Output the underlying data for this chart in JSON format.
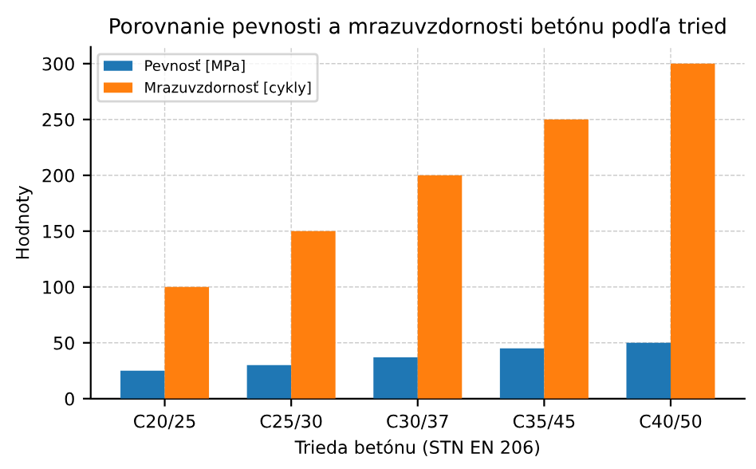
{
  "chart_data": {
    "type": "bar",
    "title": "Porovnanie pevnosti a mrazuvzdornosti betónu podľa tried",
    "xlabel": "Trieda betónu (STN EN 206)",
    "ylabel": "Hodnoty",
    "categories": [
      "C20/25",
      "C25/30",
      "C30/37",
      "C35/45",
      "C40/50"
    ],
    "series": [
      {
        "name": "Pevnosť [MPa]",
        "color": "#1f77b4",
        "values": [
          25,
          30,
          37,
          45,
          50
        ]
      },
      {
        "name": "Mrazuvzdornosť [cykly]",
        "color": "#ff7f0e",
        "values": [
          100,
          150,
          200,
          250,
          300
        ]
      }
    ],
    "ylim": [
      0,
      315
    ],
    "yticks": [
      0,
      50,
      100,
      150,
      200,
      250,
      300
    ],
    "grid": true,
    "legend": "top left"
  }
}
